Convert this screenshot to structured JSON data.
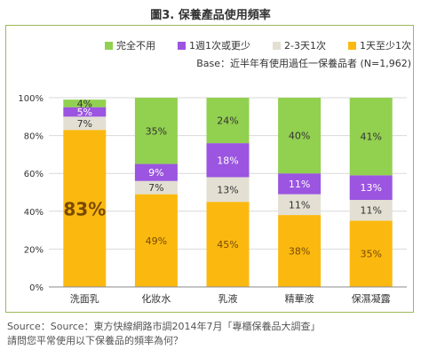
{
  "title": "圖3. 保養產品使用頻率",
  "chart_data": {
    "type": "bar",
    "stacked": true,
    "categories": [
      "洗面乳",
      "化妝水",
      "乳液",
      "精華液",
      "保濕凝露"
    ],
    "series": [
      {
        "name": "1天至少1次",
        "color": "#fbb910",
        "values": [
          83,
          49,
          45,
          38,
          35
        ],
        "label_color": "#7a4a00"
      },
      {
        "name": "2-3天1次",
        "color": "#e3dfd3",
        "values": [
          7,
          7,
          13,
          11,
          11
        ],
        "label_color": "#333333"
      },
      {
        "name": "1週1次或更少",
        "color": "#9b55e0",
        "values": [
          5,
          9,
          18,
          11,
          13
        ],
        "label_color": "#ffffff"
      },
      {
        "name": "完全不用",
        "color": "#92d050",
        "values": [
          4,
          35,
          24,
          40,
          41
        ],
        "label_color": "#333333"
      }
    ],
    "legend_order": [
      "完全不用",
      "1週1次或更少",
      "2-3天1次",
      "1天至少1次"
    ],
    "ylim": [
      0,
      100
    ],
    "yticks": [
      "0%",
      "20%",
      "40%",
      "60%",
      "80%",
      "100%"
    ],
    "value_suffix": "%",
    "grid": true,
    "legend_position": "top-right",
    "base_note": "Base：近半年有使用過任一保養品者 (N=1,962)"
  },
  "footer": {
    "source": "Source：Source：東方快線網路市調2014年7月「專櫃保養品大調查」",
    "question": "請問您平常使用以下保養品的頻率為何？"
  }
}
